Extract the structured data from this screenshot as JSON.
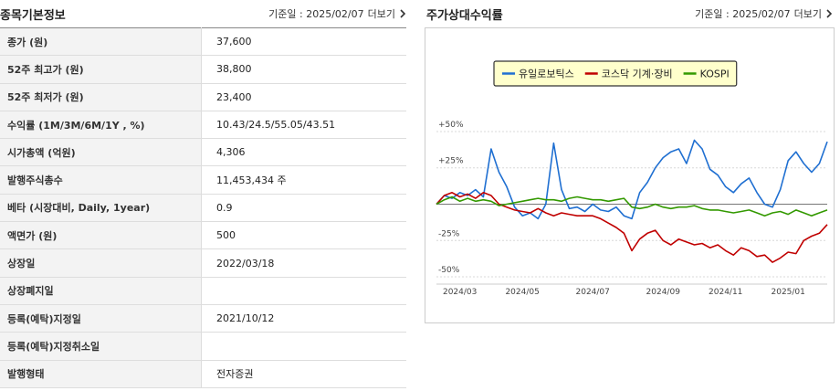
{
  "info_panel": {
    "title": "종목기본정보",
    "date": "기준일 : 2025/02/07",
    "more": "더보기",
    "rows": [
      [
        "종가 (원)",
        "37,600"
      ],
      [
        "52주 최고가 (원)",
        "38,800"
      ],
      [
        "52주 최저가 (원)",
        "23,400"
      ],
      [
        "수익률 (1M/3M/6M/1Y , %)",
        "10.43/24.5/55.05/43.51"
      ],
      [
        "시가총액 (억원)",
        "4,306"
      ],
      [
        "발행주식총수",
        "11,453,434 주"
      ],
      [
        "베타 (시장대비, Daily, 1year)",
        "0.9"
      ],
      [
        "액면가 (원)",
        "500"
      ],
      [
        "상장일",
        "2022/03/18"
      ],
      [
        "상장폐지일"
      ],
      [
        "등록(예탁)지정일",
        "2021/10/12"
      ],
      [
        "등록(예탁)지정취소일"
      ],
      [
        "발행형태",
        "전자증권"
      ]
    ]
  },
  "chart_panel": {
    "title": "주가상대수익률",
    "date": "기준일 : 2025/02/07",
    "more": "더보기"
  },
  "chart_data": {
    "type": "line",
    "categories": [
      null,
      null,
      null,
      "2024/03",
      null,
      null,
      null,
      null,
      null,
      null,
      null,
      "2024/05",
      null,
      null,
      null,
      null,
      null,
      null,
      null,
      null,
      "2024/07",
      null,
      null,
      null,
      null,
      null,
      null,
      null,
      null,
      "2024/09",
      null,
      null,
      null,
      null,
      null,
      null,
      null,
      "2024/11",
      null,
      null,
      null,
      null,
      null,
      null,
      null,
      "2025/01",
      null,
      null,
      null,
      null,
      null
    ],
    "series": [
      {
        "name": "유일로보틱스",
        "color": "#1f6fd1",
        "values": [
          0,
          6,
          4,
          8,
          6,
          10,
          5,
          38,
          22,
          12,
          -2,
          -8,
          -6,
          -10,
          0,
          42,
          10,
          -3,
          -2,
          -5,
          0,
          -4,
          -5,
          -2,
          -8,
          -10,
          8,
          15,
          25,
          32,
          36,
          38,
          28,
          44,
          38,
          24,
          20,
          12,
          8,
          14,
          18,
          8,
          0,
          -2,
          10,
          30,
          36,
          28,
          22,
          28,
          43
        ]
      },
      {
        "name": "코스닥 기계·장비",
        "color": "#c00000",
        "values": [
          0,
          6,
          8,
          5,
          7,
          4,
          8,
          6,
          0,
          -2,
          -4,
          -5,
          -6,
          -3,
          -6,
          -8,
          -6,
          -7,
          -8,
          -8,
          -8,
          -10,
          -13,
          -16,
          -20,
          -32,
          -24,
          -20,
          -18,
          -25,
          -28,
          -24,
          -26,
          -28,
          -27,
          -30,
          -28,
          -32,
          -35,
          -30,
          -32,
          -36,
          -35,
          -40,
          -37,
          -33,
          -34,
          -25,
          -22,
          -20,
          -14
        ]
      },
      {
        "name": "KOSPI",
        "color": "#339900",
        "values": [
          0,
          3,
          5,
          2,
          4,
          2,
          3,
          2,
          -1,
          0,
          1,
          2,
          3,
          4,
          3,
          3,
          2,
          4,
          5,
          4,
          3,
          3,
          2,
          3,
          4,
          -2,
          -3,
          -2,
          0,
          -2,
          -3,
          -2,
          -2,
          -1,
          -3,
          -4,
          -4,
          -5,
          -6,
          -5,
          -4,
          -6,
          -8,
          -6,
          -5,
          -7,
          -4,
          -6,
          -8,
          -6,
          -4
        ]
      }
    ],
    "ylim": [
      -55,
      55
    ],
    "yticks": [
      {
        "value": 50,
        "label": "+50%"
      },
      {
        "value": 25,
        "label": "+25%"
      },
      {
        "value": -25,
        "label": "-25%"
      },
      {
        "value": -50,
        "label": "-50%"
      }
    ],
    "grid": true
  }
}
